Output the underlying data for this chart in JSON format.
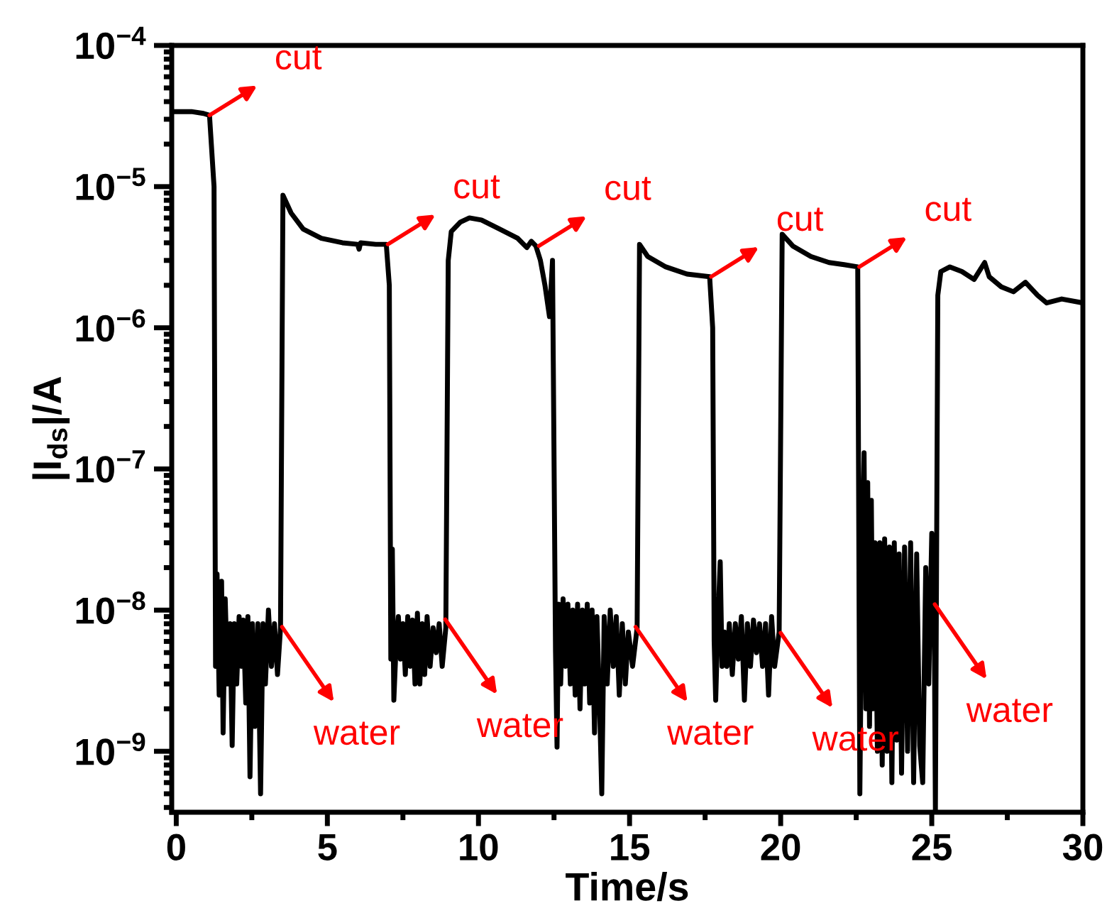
{
  "chart_data": {
    "type": "line",
    "xlabel": "Time/s",
    "ylabel": "|I$_{ds}$|/A",
    "log": "y",
    "xlim": [
      -0.15,
      30
    ],
    "xticks": [
      0,
      5,
      10,
      15,
      20,
      25,
      30
    ],
    "ylim": [
      3.7e-10,
      0.0001
    ],
    "yticks": [
      {
        "value": 1e-09,
        "label": "10$^{−9}$"
      },
      {
        "value": 1e-08,
        "label": "10$^{−8}$"
      },
      {
        "value": 1e-07,
        "label": "10$^{−7}$"
      },
      {
        "value": 1e-06,
        "label": "10$^{−6}$"
      },
      {
        "value": 1e-05,
        "label": "10$^{−5}$"
      },
      {
        "value": 0.0001,
        "label": "10$^{−4}$"
      }
    ],
    "series": [
      {
        "color": "#000000",
        "x": [
          0,
          0.5,
          0.9,
          1.1,
          1.25,
          1.3,
          1.35,
          1.42,
          1.5,
          1.55,
          1.62,
          1.7,
          1.78,
          1.85,
          1.92,
          2.0,
          2.08,
          2.15,
          2.22,
          2.3,
          2.37,
          2.44,
          2.52,
          2.6,
          2.7,
          2.79,
          2.87,
          2.95,
          3.05,
          3.15,
          3.25,
          3.35,
          3.45,
          3.53,
          3.8,
          4.2,
          4.8,
          5.5,
          6.0,
          6.05,
          6.1,
          6.6,
          6.95,
          7.05,
          7.1,
          7.15,
          7.2,
          7.28,
          7.35,
          7.42,
          7.5,
          7.58,
          7.66,
          7.74,
          7.82,
          7.9,
          7.98,
          8.06,
          8.14,
          8.22,
          8.3,
          8.4,
          8.5,
          8.6,
          8.7,
          8.8,
          8.92,
          9.0,
          9.1,
          9.4,
          9.7,
          10.1,
          10.7,
          11.3,
          11.6,
          11.75,
          11.9,
          12.05,
          12.2,
          12.35,
          12.45,
          12.55,
          12.6,
          12.65,
          12.72,
          12.8,
          12.88,
          12.96,
          13.04,
          13.12,
          13.2,
          13.28,
          13.36,
          13.44,
          13.52,
          13.6,
          13.68,
          13.76,
          13.84,
          13.92,
          14.0,
          14.08,
          14.16,
          14.26,
          14.36,
          14.46,
          14.56,
          14.66,
          14.76,
          14.86,
          14.96,
          15.1,
          15.25,
          15.33,
          15.6,
          16.2,
          16.9,
          17.65,
          17.75,
          17.8,
          17.85,
          17.92,
          18.0,
          18.06,
          18.14,
          18.22,
          18.3,
          18.4,
          18.5,
          18.6,
          18.7,
          18.8,
          18.9,
          19.0,
          19.1,
          19.2,
          19.3,
          19.4,
          19.5,
          19.6,
          19.7,
          19.8,
          19.95,
          20.05,
          20.4,
          21.0,
          21.6,
          22.1,
          22.55,
          22.62,
          22.7,
          22.76,
          22.82,
          22.88,
          22.94,
          23.0,
          23.06,
          23.12,
          23.2,
          23.28,
          23.36,
          23.44,
          23.52,
          23.6,
          23.68,
          23.76,
          23.84,
          23.92,
          24.0,
          24.1,
          24.2,
          24.3,
          24.4,
          24.5,
          24.6,
          24.7,
          24.8,
          24.9,
          25.0,
          25.08,
          25.12,
          25.2,
          25.3,
          25.6,
          26.0,
          26.4,
          26.75,
          26.9,
          27.3,
          27.7,
          28.1,
          28.5,
          28.8,
          29.3,
          30.0
        ],
        "values": [
          3.4e-05,
          3.4e-05,
          3.3e-05,
          3.2e-05,
          1e-05,
          4e-09,
          1.8e-08,
          2.5e-09,
          1.6e-08,
          1.35e-09,
          1.2e-08,
          3e-09,
          8e-09,
          1.1e-09,
          8e-09,
          3e-09,
          9e-09,
          4e-09,
          8.5e-09,
          2.2e-09,
          9e-09,
          6.6e-10,
          8e-09,
          1.5e-09,
          8e-09,
          5e-10,
          8e-09,
          3e-09,
          1e-08,
          4e-09,
          8e-09,
          3.5e-09,
          7.5e-09,
          8.7e-06,
          6.5e-06,
          5e-06,
          4.3e-06,
          4e-06,
          3.9e-06,
          3.6e-06,
          4e-06,
          3.9e-06,
          3.9e-06,
          2e-06,
          4.5e-09,
          2.7e-08,
          2.3e-09,
          6e-09,
          9e-09,
          4.5e-09,
          8e-09,
          3.5e-09,
          9e-09,
          4e-09,
          8.5e-09,
          3e-09,
          9.5e-09,
          3e-09,
          8e-09,
          3.5e-09,
          9e-09,
          4e-09,
          7.5e-09,
          5e-09,
          8e-09,
          4e-09,
          7.5e-09,
          3e-06,
          4.8e-06,
          5.6e-06,
          6e-06,
          5.8e-06,
          5e-06,
          4.3e-06,
          3.7e-06,
          4.1e-06,
          3.8e-06,
          3e-06,
          2e-06,
          1.2e-06,
          3e-06,
          5e-09,
          1.07e-09,
          1.1e-08,
          3e-09,
          1.2e-08,
          4e-09,
          1.1e-08,
          3e-09,
          1e-08,
          2.5e-09,
          1.1e-08,
          2e-09,
          1e-08,
          3e-09,
          1.1e-08,
          2.2e-09,
          1e-08,
          1.35e-09,
          9e-09,
          2.5e-09,
          5e-10,
          9e-09,
          3e-09,
          1e-08,
          4e-09,
          9e-09,
          2.5e-09,
          8e-09,
          3e-09,
          7e-09,
          4e-09,
          7.5e-09,
          3.9e-06,
          3.2e-06,
          2.7e-06,
          2.4e-06,
          2.3e-06,
          1e-06,
          6e-09,
          2.3e-09,
          8e-09,
          2.2e-08,
          4e-09,
          7e-09,
          4e-09,
          8e-09,
          3.5e-09,
          8e-09,
          4.5e-09,
          9e-09,
          2.3e-09,
          8e-09,
          4e-09,
          8.5e-09,
          5e-09,
          8e-09,
          4e-09,
          8e-09,
          2.5e-09,
          9e-09,
          4e-09,
          7e-09,
          4.6e-06,
          3.8e-06,
          3.2e-06,
          2.9e-06,
          2.8e-06,
          2.7e-06,
          5e-10,
          3e-08,
          1.3e-07,
          2e-09,
          8e-08,
          1.5e-09,
          6e-08,
          2e-09,
          3e-08,
          1e-09,
          3e-08,
          8e-10,
          3.2e-08,
          1e-09,
          2.8e-08,
          6e-10,
          3e-08,
          1.2e-09,
          2.5e-08,
          7e-10,
          2.8e-08,
          1e-09,
          3e-08,
          6e-10,
          2.5e-08,
          1.1e-09,
          6e-10,
          2e-08,
          3e-09,
          3.5e-08,
          1.1e-08,
          3.8e-10,
          1.7e-06,
          2.5e-06,
          2.7e-06,
          2.5e-06,
          2.2e-06,
          2.9e-06,
          2.3e-06,
          1.95e-06,
          1.8e-06,
          2.1e-06,
          1.7e-06,
          1.5e-06,
          1.6e-06,
          1.5e-06
        ]
      }
    ],
    "annotations": [
      {
        "text": "cut",
        "x": 1.1,
        "y": 3.2e-05
      },
      {
        "text": "cut",
        "x": 7.0,
        "y": 3.9e-06
      },
      {
        "text": "cut",
        "x": 12.0,
        "y": 3.8e-06
      },
      {
        "text": "cut",
        "x": 17.7,
        "y": 2.3e-06
      },
      {
        "text": "cut",
        "x": 22.6,
        "y": 2.7e-06
      },
      {
        "text": "water",
        "x": 3.5,
        "y": 7.6e-09
      },
      {
        "text": "water",
        "x": 8.9,
        "y": 8.6e-09
      },
      {
        "text": "water",
        "x": 15.2,
        "y": 7.6e-09
      },
      {
        "text": "water",
        "x": 20.0,
        "y": 6.9e-09
      },
      {
        "text": "water",
        "x": 25.1,
        "y": 1.1e-08
      }
    ]
  }
}
